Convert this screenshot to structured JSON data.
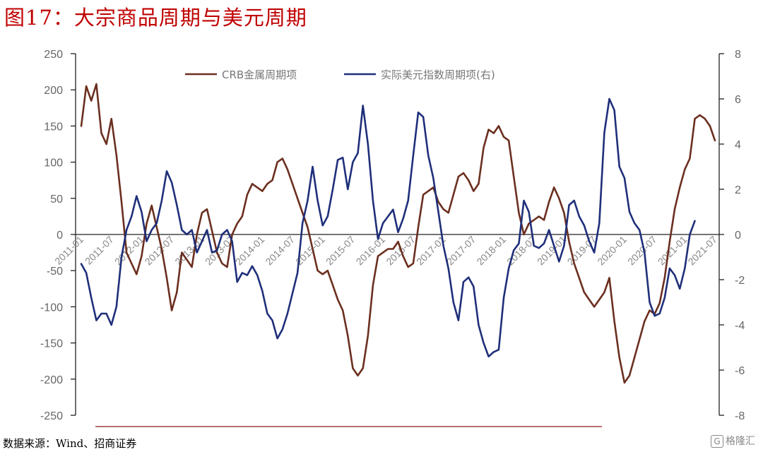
{
  "page": {
    "title": "图17：大宗商品周期与美元周期",
    "source": "数据来源：Wind、招商证券",
    "watermark": "格隆汇",
    "watermark_icon": "G"
  },
  "colors": {
    "crb": "#6b2f1f",
    "usd": "#1f2f7a",
    "title": "#c00000",
    "source_rule": "#8b1a1a",
    "axis": "#222222"
  },
  "chart_data": {
    "type": "line",
    "title": "",
    "xlabel": "",
    "ylabel": "",
    "ylim": [
      -250,
      250
    ],
    "y2lim": [
      -8,
      8
    ],
    "yticks": [
      "250",
      "200",
      "150",
      "100",
      "50",
      "0",
      "-50",
      "-100",
      "-150",
      "-200",
      "-250"
    ],
    "y2ticks": [
      "8",
      "6",
      "4",
      "2",
      "0",
      "-2",
      "-4",
      "-6",
      "-8"
    ],
    "xticks": [
      "2011-01",
      "2011-07",
      "2012-01",
      "2012-07",
      "2013-01",
      "2013-07",
      "2014-01",
      "2014-07",
      "2015-01",
      "2015-07",
      "2016-01",
      "2016-07",
      "2017-01",
      "2017-07",
      "2018-01",
      "2018-07",
      "2019-01",
      "2019-07",
      "2020-01",
      "2020-07",
      "2021-01",
      "2021-07"
    ],
    "x_start": "2011-01",
    "grid": false,
    "legend_position": "top",
    "series": [
      {
        "name": "CRB金属周期项",
        "axis": "left",
        "values": [
          150,
          205,
          185,
          208,
          140,
          125,
          160,
          110,
          45,
          -25,
          -40,
          -55,
          -30,
          15,
          40,
          10,
          -20,
          -60,
          -105,
          -80,
          -25,
          -35,
          -45,
          0,
          30,
          35,
          5,
          -25,
          -40,
          -45,
          0,
          15,
          25,
          55,
          70,
          65,
          60,
          70,
          75,
          100,
          105,
          90,
          70,
          50,
          30,
          10,
          -20,
          -50,
          -55,
          -50,
          -70,
          -90,
          -105,
          -140,
          -185,
          -195,
          -185,
          -140,
          -70,
          -30,
          -25,
          -20,
          -20,
          -10,
          -30,
          -45,
          -40,
          10,
          55,
          60,
          65,
          45,
          35,
          30,
          55,
          80,
          85,
          75,
          60,
          70,
          120,
          145,
          140,
          150,
          135,
          130,
          80,
          30,
          0,
          15,
          20,
          25,
          20,
          45,
          65,
          50,
          30,
          -10,
          -40,
          -60,
          -80,
          -90,
          -100,
          -90,
          -80,
          -60,
          -120,
          -170,
          -205,
          -195,
          -170,
          -145,
          -120,
          -105,
          -110,
          -95,
          -60,
          -10,
          35,
          65,
          90,
          105,
          160,
          165,
          160,
          150,
          130
        ]
      },
      {
        "name": "实际美元指数周期项(右)",
        "axis": "right",
        "values": [
          -1.3,
          -1.7,
          -2.8,
          -3.8,
          -3.5,
          -3.5,
          -4.0,
          -3.2,
          -1.0,
          0.2,
          0.8,
          1.7,
          1.0,
          -0.3,
          0.2,
          0.5,
          1.5,
          2.8,
          2.3,
          1.3,
          0.2,
          0.0,
          0.2,
          -0.8,
          -0.3,
          0.2,
          -0.8,
          -0.7,
          0.0,
          0.2,
          -0.3,
          -2.1,
          -1.7,
          -1.8,
          -1.4,
          -1.8,
          -2.5,
          -3.5,
          -3.8,
          -4.6,
          -4.2,
          -3.5,
          -2.6,
          -1.7,
          0.5,
          1.5,
          3.0,
          1.5,
          0.4,
          0.8,
          2.0,
          3.3,
          3.4,
          2.0,
          3.2,
          3.6,
          5.7,
          4.0,
          1.5,
          -0.2,
          0.5,
          0.8,
          1.1,
          0.1,
          0.7,
          1.5,
          3.5,
          5.4,
          5.2,
          3.5,
          2.5,
          1.0,
          -0.5,
          -1.5,
          -3.0,
          -3.8,
          -2.1,
          -1.9,
          -2.3,
          -4.0,
          -4.8,
          -5.4,
          -5.2,
          -5.1,
          -2.8,
          -1.5,
          -0.7,
          -0.4,
          1.5,
          1.0,
          -0.5,
          -0.6,
          -0.4,
          0.2,
          -0.5,
          -1.2,
          -0.5,
          1.3,
          1.5,
          0.8,
          0.4,
          -0.3,
          -0.8,
          0.5,
          4.5,
          6.0,
          5.5,
          3.0,
          2.5,
          1.0,
          0.5,
          0.2,
          -0.8,
          -3.0,
          -3.6,
          -3.5,
          -2.8,
          -1.5,
          -1.8,
          -2.4,
          -1.5,
          0.0,
          0.6
        ]
      }
    ]
  }
}
